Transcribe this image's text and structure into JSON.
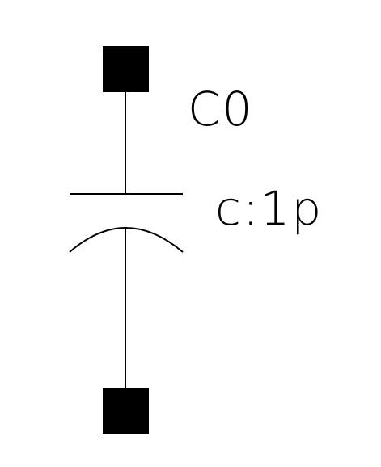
{
  "schematic": {
    "component": "capacitor",
    "instance_name": "C0",
    "parameter": "c:1p",
    "colors": {
      "line": "#000000",
      "pin": "#000000",
      "background": "#ffffff"
    }
  }
}
